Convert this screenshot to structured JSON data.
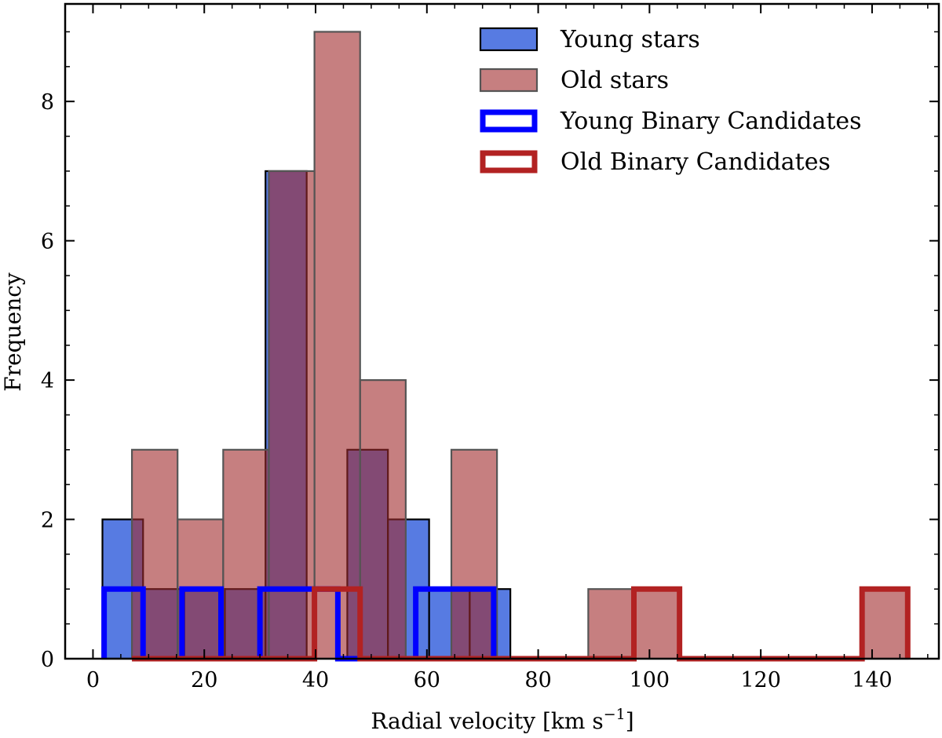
{
  "chart_data": {
    "type": "bar",
    "title": "",
    "xlabel": "Radial velocity [km s",
    "xlabel_sup": "−1",
    "xlabel_end": "]",
    "ylabel": "Frequency",
    "xlim": [
      -5,
      152
    ],
    "ylim": [
      0,
      9.4
    ],
    "x_ticks": [
      0,
      20,
      40,
      60,
      80,
      100,
      120,
      140
    ],
    "y_ticks": [
      0,
      2,
      4,
      6,
      8
    ],
    "grid": false,
    "legend_position": "top-right",
    "series": [
      {
        "name": "Young stars",
        "style": "filled",
        "color": "#1f4fd8",
        "edgecolor": "#000000",
        "bin_edges": [
          1.7,
          9.0,
          16.4,
          23.7,
          31.0,
          38.4,
          45.7,
          53.0,
          60.4,
          67.7,
          75.0
        ],
        "values": [
          2,
          1,
          1,
          1,
          7,
          0,
          3,
          2,
          1,
          1
        ]
      },
      {
        "name": "Old stars",
        "style": "filled",
        "color": "#a0292b",
        "edgecolor": "#555555",
        "bin_edges": [
          7.0,
          15.2,
          23.4,
          31.6,
          39.8,
          48.0,
          56.2,
          64.4,
          72.6,
          80.8,
          89.0,
          97.2,
          105.4,
          113.6,
          121.8,
          130.0,
          138.2,
          146.4
        ],
        "values": [
          3,
          2,
          3,
          7,
          9,
          4,
          0,
          3,
          0,
          0,
          1,
          1,
          0,
          0,
          0,
          0,
          1
        ]
      },
      {
        "name": "Young Binary Candidates",
        "style": "step",
        "color": "#0000ff",
        "bin_edges": [
          2.0,
          9.0,
          16.0,
          23.0,
          30.0,
          37.0,
          44.0,
          51.0,
          58.0,
          65.0,
          72.0
        ],
        "values": [
          1,
          0,
          1,
          0,
          1,
          1,
          0,
          0,
          1,
          1
        ]
      },
      {
        "name": "Old Binary Candidates",
        "style": "step",
        "color": "#b22222",
        "bin_edges": [
          7.0,
          15.2,
          23.4,
          31.6,
          39.8,
          48.0,
          56.2,
          64.4,
          72.6,
          80.8,
          89.0,
          97.2,
          105.4,
          113.6,
          121.8,
          130.0,
          138.2,
          146.4
        ],
        "values": [
          0,
          0,
          0,
          0,
          1,
          0,
          0,
          0,
          0,
          0,
          0,
          1,
          0,
          0,
          0,
          0,
          1
        ]
      }
    ]
  }
}
